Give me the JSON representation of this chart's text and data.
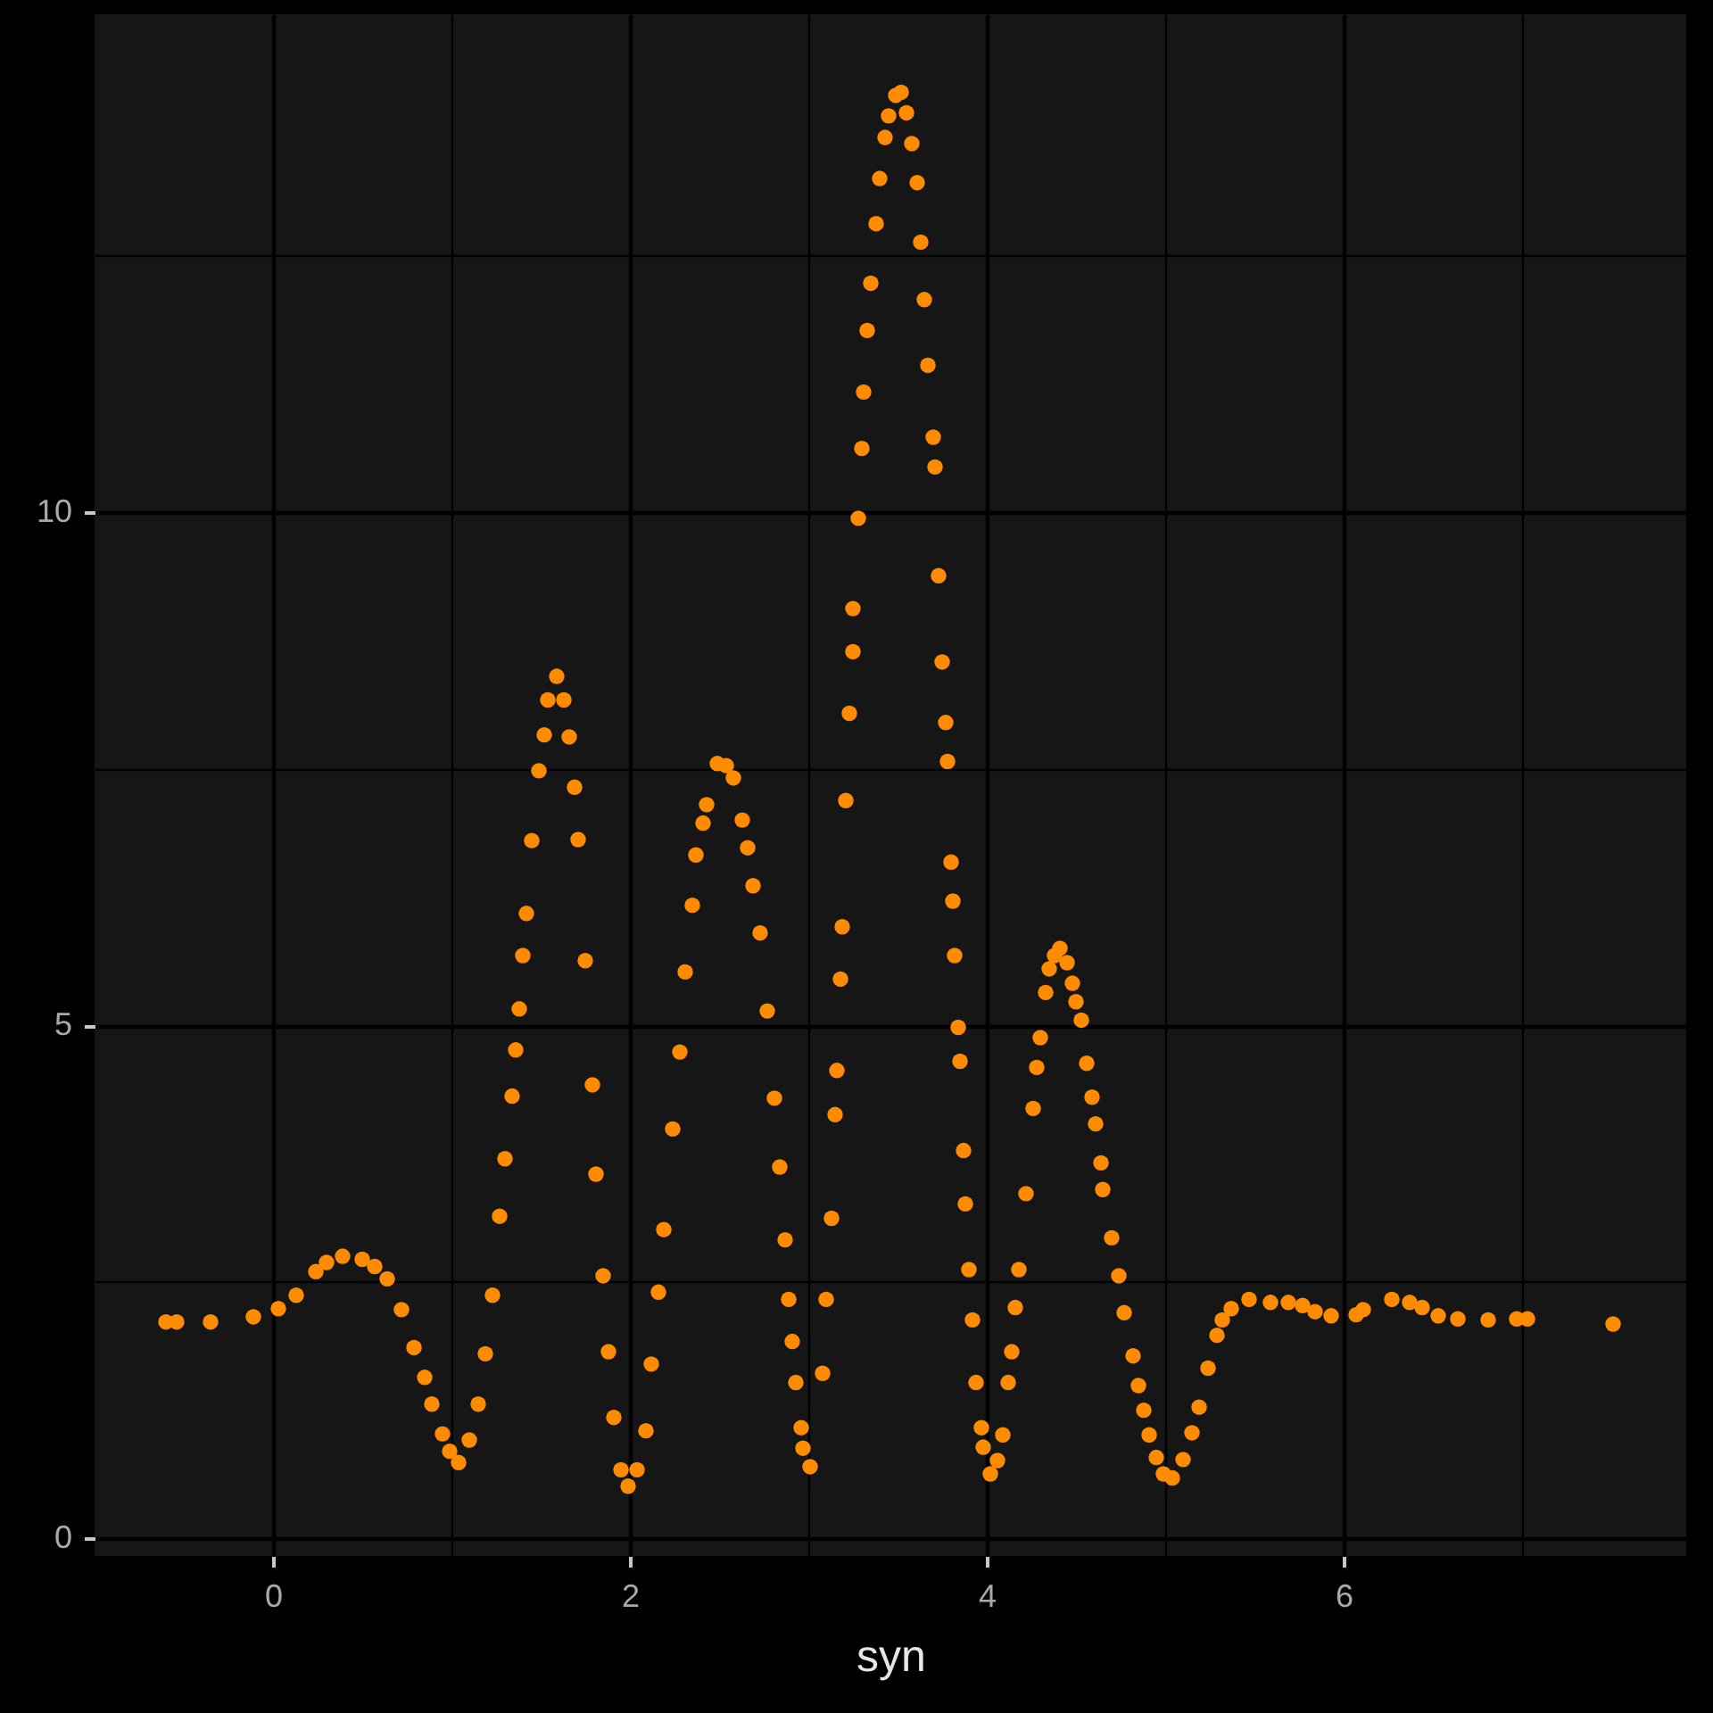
{
  "chart_data": {
    "type": "scatter",
    "xlabel": "syn",
    "color": "#ff8c00",
    "marker": "circle",
    "grid": true,
    "xlim": [
      -1.0,
      7.92
    ],
    "ylim": [
      -0.17,
      14.85
    ],
    "xticks": [
      0,
      {
        "value": 1,
        "label": null
      },
      2,
      {
        "value": 3,
        "label": null
      },
      4,
      {
        "value": 5,
        "label": null
      },
      6,
      {
        "value": 7,
        "label": null
      }
    ],
    "yticks": [
      0,
      {
        "value": 2.5,
        "label": null
      },
      5,
      {
        "value": 7.5,
        "label": null
      },
      10,
      {
        "value": 12.5,
        "label": null
      }
    ],
    "x": [
      -0.6,
      -0.54,
      -0.35,
      -0.11,
      0.03,
      0.13,
      0.24,
      0.3,
      0.39,
      0.5,
      0.57,
      0.64,
      0.72,
      0.79,
      0.85,
      0.89,
      0.95,
      0.99,
      1.04,
      1.1,
      1.15,
      1.19,
      1.23,
      1.27,
      1.3,
      1.34,
      1.36,
      1.38,
      1.4,
      1.42,
      1.45,
      1.49,
      1.52,
      1.54,
      1.59,
      1.63,
      1.66,
      1.69,
      1.71,
      1.75,
      1.79,
      1.81,
      1.85,
      1.88,
      1.91,
      1.95,
      1.99,
      2.04,
      2.09,
      2.12,
      2.16,
      2.19,
      2.24,
      2.28,
      2.31,
      2.35,
      2.37,
      2.41,
      2.43,
      2.49,
      2.54,
      2.58,
      2.63,
      2.66,
      2.69,
      2.73,
      2.77,
      2.81,
      2.84,
      2.87,
      2.89,
      2.91,
      2.93,
      2.96,
      2.97,
      3.01,
      3.08,
      3.1,
      3.13,
      3.15,
      3.16,
      3.18,
      3.19,
      3.21,
      3.23,
      3.25,
      3.25,
      3.28,
      3.3,
      3.31,
      3.33,
      3.35,
      3.38,
      3.4,
      3.43,
      3.45,
      3.49,
      3.52,
      3.55,
      3.58,
      3.61,
      3.63,
      3.65,
      3.67,
      3.7,
      3.71,
      3.73,
      3.75,
      3.77,
      3.78,
      3.8,
      3.81,
      3.82,
      3.84,
      3.85,
      3.87,
      3.88,
      3.9,
      3.92,
      3.94,
      3.97,
      3.98,
      4.02,
      4.06,
      4.09,
      4.12,
      4.14,
      4.16,
      4.18,
      4.22,
      4.26,
      4.28,
      4.3,
      4.33,
      4.35,
      4.38,
      4.41,
      4.45,
      4.48,
      4.5,
      4.53,
      4.56,
      4.59,
      4.61,
      4.64,
      4.65,
      4.7,
      4.74,
      4.77,
      4.82,
      4.85,
      4.88,
      4.91,
      4.95,
      4.99,
      5.04,
      5.1,
      5.15,
      5.19,
      5.24,
      5.29,
      5.32,
      5.37,
      5.47,
      5.59,
      5.69,
      5.77,
      5.84,
      5.93,
      6.07,
      6.11,
      6.27,
      6.37,
      6.44,
      6.53,
      6.64,
      6.81,
      6.97,
      7.03,
      7.51
    ],
    "values": [
      2.11,
      2.11,
      2.11,
      2.16,
      2.24,
      2.37,
      2.6,
      2.69,
      2.75,
      2.72,
      2.65,
      2.53,
      2.23,
      1.86,
      1.57,
      1.31,
      1.02,
      0.85,
      0.74,
      0.96,
      1.31,
      1.8,
      2.37,
      3.14,
      3.7,
      4.31,
      4.76,
      5.16,
      5.68,
      6.09,
      6.8,
      7.48,
      7.83,
      8.17,
      8.4,
      8.17,
      7.81,
      7.32,
      6.81,
      5.63,
      4.42,
      3.55,
      2.56,
      1.82,
      1.18,
      0.67,
      0.51,
      0.67,
      1.05,
      1.7,
      2.4,
      3.01,
      3.99,
      4.74,
      5.52,
      6.17,
      6.66,
      6.97,
      7.15,
      7.55,
      7.53,
      7.41,
      7.0,
      6.73,
      6.36,
      5.9,
      5.14,
      4.29,
      3.62,
      2.91,
      2.33,
      1.92,
      1.52,
      1.08,
      0.88,
      0.7,
      1.61,
      2.33,
      3.12,
      4.13,
      4.56,
      5.45,
      5.96,
      7.19,
      8.04,
      8.64,
      9.06,
      9.94,
      10.62,
      11.17,
      11.77,
      12.23,
      12.81,
      13.25,
      13.65,
      13.86,
      14.06,
      14.09,
      13.89,
      13.59,
      13.21,
      12.63,
      12.07,
      11.43,
      10.73,
      10.44,
      9.38,
      8.54,
      7.95,
      7.57,
      6.59,
      6.21,
      5.68,
      4.98,
      4.65,
      3.78,
      3.26,
      2.62,
      2.13,
      1.52,
      1.08,
      0.89,
      0.63,
      0.76,
      1.01,
      1.52,
      1.82,
      2.25,
      2.62,
      3.36,
      4.19,
      4.59,
      4.88,
      5.32,
      5.55,
      5.68,
      5.75,
      5.61,
      5.41,
      5.23,
      5.05,
      4.63,
      4.3,
      4.04,
      3.66,
      3.4,
      2.93,
      2.56,
      2.2,
      1.78,
      1.49,
      1.25,
      1.01,
      0.79,
      0.63,
      0.59,
      0.77,
      1.03,
      1.28,
      1.66,
      1.98,
      2.13,
      2.24,
      2.33,
      2.3,
      2.3,
      2.27,
      2.21,
      2.17,
      2.18,
      2.23,
      2.33,
      2.3,
      2.25,
      2.17,
      2.14,
      2.13,
      2.14,
      2.14,
      2.09
    ]
  }
}
